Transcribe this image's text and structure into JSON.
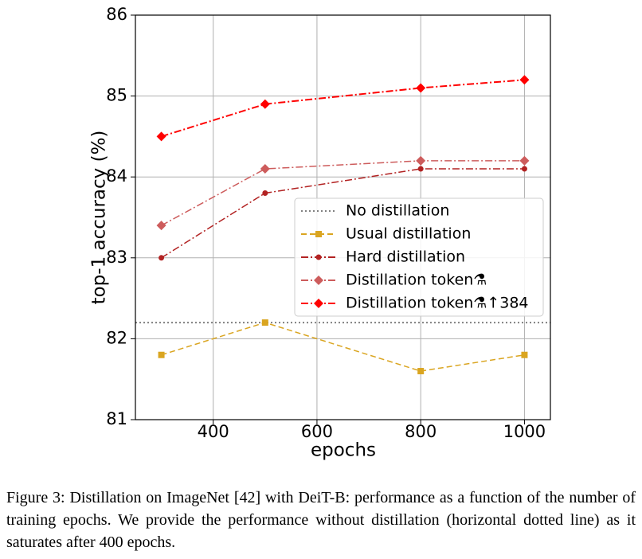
{
  "chart_data": {
    "type": "line",
    "x": [
      300,
      500,
      800,
      1000
    ],
    "xlabel": "epochs",
    "ylabel": "top-1 accuracy (%)",
    "xlim": [
      250,
      1050
    ],
    "xticks": [
      400,
      600,
      800,
      1000
    ],
    "ylim": [
      81,
      86
    ],
    "yticks": [
      81,
      82,
      83,
      84,
      85,
      86
    ],
    "grid": true,
    "legend": "center right",
    "series": [
      {
        "name": "No distillation",
        "color": "#808080",
        "dash": "dotted",
        "y": 82.2
      },
      {
        "name": "Usual distillation",
        "color": "#daa520",
        "dash": "dashed",
        "marker": "square",
        "values": [
          81.8,
          82.2,
          81.6,
          81.8
        ]
      },
      {
        "name": "Hard distillation",
        "color": "#b22222",
        "dash": "dashdot",
        "marker": "circle",
        "values": [
          83.0,
          83.8,
          84.1,
          84.1
        ]
      },
      {
        "name": "Distillation token⚗",
        "color": "#cd5c5c",
        "dash": "dashdot",
        "marker": "diamond",
        "values": [
          83.4,
          84.1,
          84.2,
          84.2
        ]
      },
      {
        "name": "Distillation token⚗↑384",
        "color": "#ff0000",
        "dash": "dashdot",
        "marker": "diamond",
        "values": [
          84.5,
          84.9,
          85.1,
          85.2
        ]
      }
    ]
  },
  "caption": "Figure 3: Distillation on ImageNet [42] with DeiT-B: performance as a function of the number of training epochs. We provide the performance without distillation (horizontal dotted line) as it saturates after 400 epochs."
}
